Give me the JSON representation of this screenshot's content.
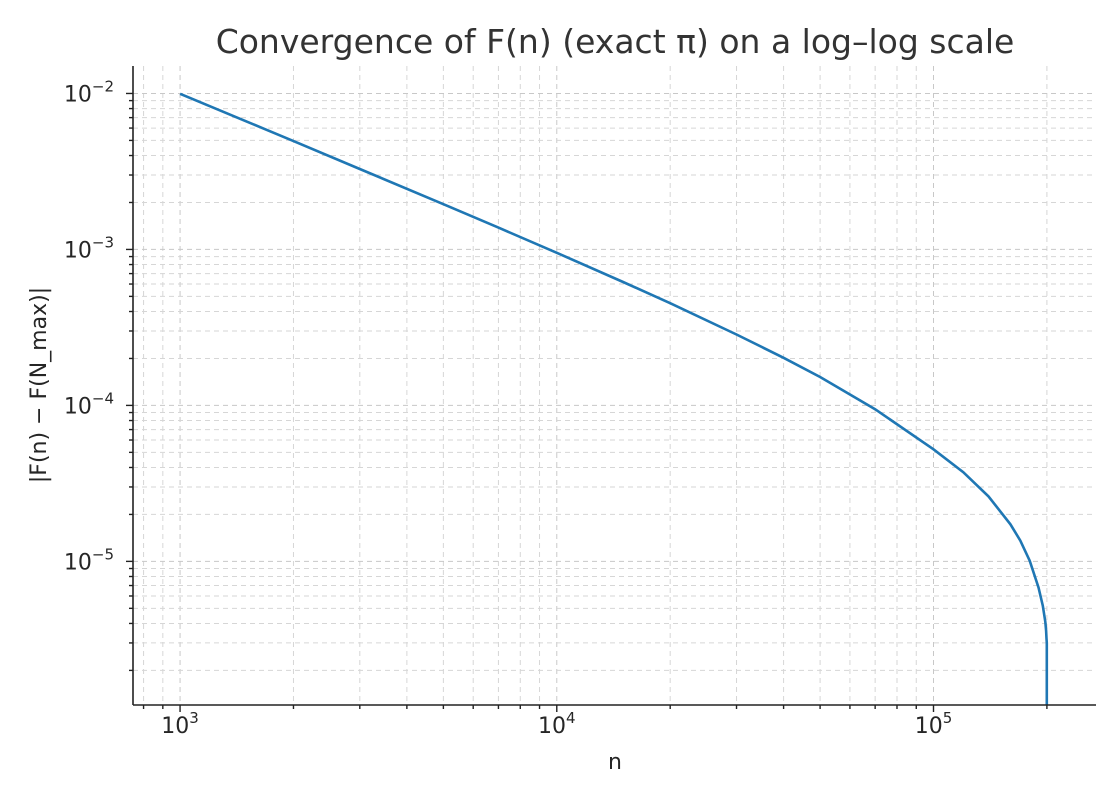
{
  "chart_data": {
    "type": "line",
    "title": "Convergence of F(n) (exact π) on a log–log scale",
    "xlabel": "n",
    "ylabel": "|F(n) − F(N_max)|",
    "xscale": "log",
    "yscale": "log",
    "xlim": [
      750,
      270000
    ],
    "ylim": [
      1.2e-06,
      0.015
    ],
    "x_ticks": [
      {
        "value": 1000,
        "base": "10",
        "exp": "3"
      },
      {
        "value": 10000,
        "base": "10",
        "exp": "4"
      },
      {
        "value": 100000,
        "base": "10",
        "exp": "5"
      }
    ],
    "y_ticks": [
      {
        "value": 0.01,
        "base": "10",
        "exp": "−2"
      },
      {
        "value": 0.001,
        "base": "10",
        "exp": "−3"
      },
      {
        "value": 0.0001,
        "base": "10",
        "exp": "−4"
      },
      {
        "value": 1e-05,
        "base": "10",
        "exp": "−5"
      }
    ],
    "grid": true,
    "grid_style": "dashed",
    "series": [
      {
        "color": "#1f77b4",
        "x": [
          1000,
          1500,
          2000,
          3000,
          5000,
          7000,
          10000,
          15000,
          20000,
          30000,
          40000,
          50000,
          70000,
          100000,
          120000,
          140000,
          160000,
          170000,
          180000,
          190000,
          195000,
          198000,
          199000,
          199500,
          199900
        ],
        "y": [
          0.00995,
          0.00662,
          0.00495,
          0.00328,
          0.00195,
          0.00138,
          0.000952,
          0.000618,
          0.000452,
          0.000285,
          0.000202,
          0.000152,
          9.45e-05,
          5.23e-05,
          3.73e-05,
          2.61e-05,
          1.73e-05,
          1.36e-05,
          1.01e-05,
          6.8e-06,
          5.2e-06,
          4.1e-06,
          3.6e-06,
          3.2e-06,
          3e-06
        ]
      }
    ]
  }
}
